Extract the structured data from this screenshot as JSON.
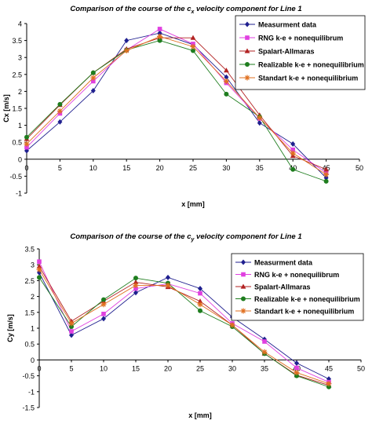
{
  "chart_data": [
    {
      "type": "line",
      "title": "Comparison of the course of the c",
      "title_sub": "x",
      "title_tail": " velocity component for Line 1",
      "xlabel": "x [mm]",
      "ylabel": "Cx [m/s]",
      "xlim": [
        0,
        50
      ],
      "ylim": [
        -1,
        4
      ],
      "xticks": [
        0,
        5,
        10,
        15,
        20,
        25,
        30,
        35,
        40,
        45,
        50
      ],
      "yticks": [
        -1,
        -0.5,
        0,
        0.5,
        1,
        1.5,
        2,
        2.5,
        3,
        3.5,
        4
      ],
      "ytick_labels": [
        "-1",
        "-0.5",
        "0",
        "0.5",
        "1",
        "1.5",
        "2",
        "2.5",
        "3",
        "3.5",
        "4"
      ],
      "grid": false,
      "legend_position": "top-right",
      "x": [
        0,
        5,
        10,
        15,
        20,
        25,
        30,
        35,
        40,
        45
      ],
      "series": [
        {
          "name": "Measurment data",
          "color": "#1f1f8f",
          "marker": "diamond",
          "values": [
            0.25,
            1.1,
            2.02,
            3.5,
            3.72,
            3.38,
            2.42,
            1.07,
            0.45,
            -0.55
          ]
        },
        {
          "name": "RNG k-e + nonequilibrum",
          "color": "#e040e0",
          "marker": "square",
          "values": [
            0.35,
            1.35,
            2.3,
            3.22,
            3.84,
            3.4,
            2.25,
            1.2,
            0.28,
            -0.4
          ]
        },
        {
          "name": "Spalart-Allmaras",
          "color": "#b22222",
          "marker": "triangle",
          "values": [
            0.6,
            1.6,
            2.55,
            3.25,
            3.58,
            3.58,
            2.62,
            1.3,
            0.1,
            -0.3
          ]
        },
        {
          "name": "Realizable k-e + nonequilibrium",
          "color": "#1e7d1e",
          "marker": "circle",
          "values": [
            0.65,
            1.62,
            2.55,
            3.22,
            3.5,
            3.2,
            1.92,
            1.25,
            -0.3,
            -0.65
          ]
        },
        {
          "name": "Standart k-e + nonequilibrium",
          "color": "#e07020",
          "marker": "star",
          "values": [
            0.45,
            1.42,
            2.4,
            3.2,
            3.62,
            3.32,
            2.3,
            1.22,
            0.18,
            -0.45
          ]
        }
      ]
    },
    {
      "type": "line",
      "title": "Comparison of the course of the c",
      "title_sub": "y",
      "title_tail": " velocity component for Line 1",
      "xlabel": "x [mm]",
      "ylabel": "Cy [m/s]",
      "xlim": [
        0,
        50
      ],
      "ylim": [
        -1.5,
        3.5
      ],
      "xticks": [
        0,
        5,
        10,
        15,
        20,
        25,
        30,
        35,
        40,
        45,
        50
      ],
      "yticks": [
        -1.5,
        -1,
        -0.5,
        0,
        0.5,
        1,
        1.5,
        2,
        2.5,
        3,
        3.5
      ],
      "ytick_labels": [
        "-1.5",
        "-1",
        "-0.5",
        "0",
        "0.5",
        "1",
        "1.5",
        "2",
        "2.5",
        "3",
        "3.5"
      ],
      "grid": false,
      "legend_position": "top-right",
      "x": [
        0,
        5,
        10,
        15,
        20,
        25,
        30,
        35,
        40,
        45
      ],
      "series": [
        {
          "name": "Measurment data",
          "color": "#1f1f8f",
          "marker": "diamond",
          "values": [
            2.75,
            0.78,
            1.3,
            2.12,
            2.6,
            2.25,
            1.35,
            0.65,
            -0.1,
            -0.6
          ]
        },
        {
          "name": "RNG k-e + nonequilibrum",
          "color": "#e040e0",
          "marker": "square",
          "values": [
            3.1,
            0.9,
            1.45,
            2.25,
            2.4,
            2.1,
            1.15,
            0.58,
            -0.25,
            -0.7
          ]
        },
        {
          "name": "Spalart-Allmaras",
          "color": "#b22222",
          "marker": "triangle",
          "values": [
            2.95,
            1.22,
            1.85,
            2.45,
            2.3,
            1.85,
            1.1,
            0.2,
            -0.48,
            -0.8
          ]
        },
        {
          "name": "Realizable k-e + nonequilibrium",
          "color": "#1e7d1e",
          "marker": "circle",
          "values": [
            2.6,
            1.05,
            1.9,
            2.58,
            2.42,
            1.55,
            1.05,
            0.2,
            -0.5,
            -0.85
          ]
        },
        {
          "name": "Standart k-e + nonequilibrium",
          "color": "#e07020",
          "marker": "star",
          "values": [
            2.85,
            1.15,
            1.75,
            2.35,
            2.35,
            1.75,
            1.1,
            0.25,
            -0.4,
            -0.75
          ]
        }
      ]
    }
  ]
}
